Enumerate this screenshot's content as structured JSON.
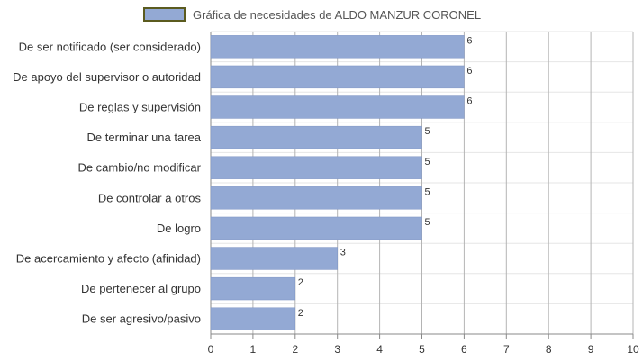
{
  "chart_data": {
    "type": "bar",
    "orientation": "horizontal",
    "categories": [
      "De ser notificado (ser considerado)",
      "De apoyo del supervisor o autoridad",
      "De reglas y supervisión",
      "De terminar una tarea",
      "De cambio/no modificar",
      "De controlar a otros",
      "De logro",
      "De acercamiento y afecto (afinidad)",
      "De pertenecer al grupo",
      "De ser agresivo/pasivo"
    ],
    "series": [
      {
        "name": "Gráfica de necesidades de ALDO MANZUR CORONEL",
        "values": [
          6,
          6,
          6,
          5,
          5,
          5,
          5,
          3,
          2,
          2
        ]
      }
    ],
    "xlim": [
      0,
      10
    ],
    "xticks": [
      0,
      1,
      2,
      3,
      4,
      5,
      6,
      7,
      8,
      9,
      10
    ],
    "grid": true,
    "legend_position": "top",
    "data_labels": true,
    "bar_color": "#93a9d4",
    "legend_border_color": "#5b5b1f",
    "grid_color": "#b4b4b4",
    "text_color": "#333333"
  }
}
